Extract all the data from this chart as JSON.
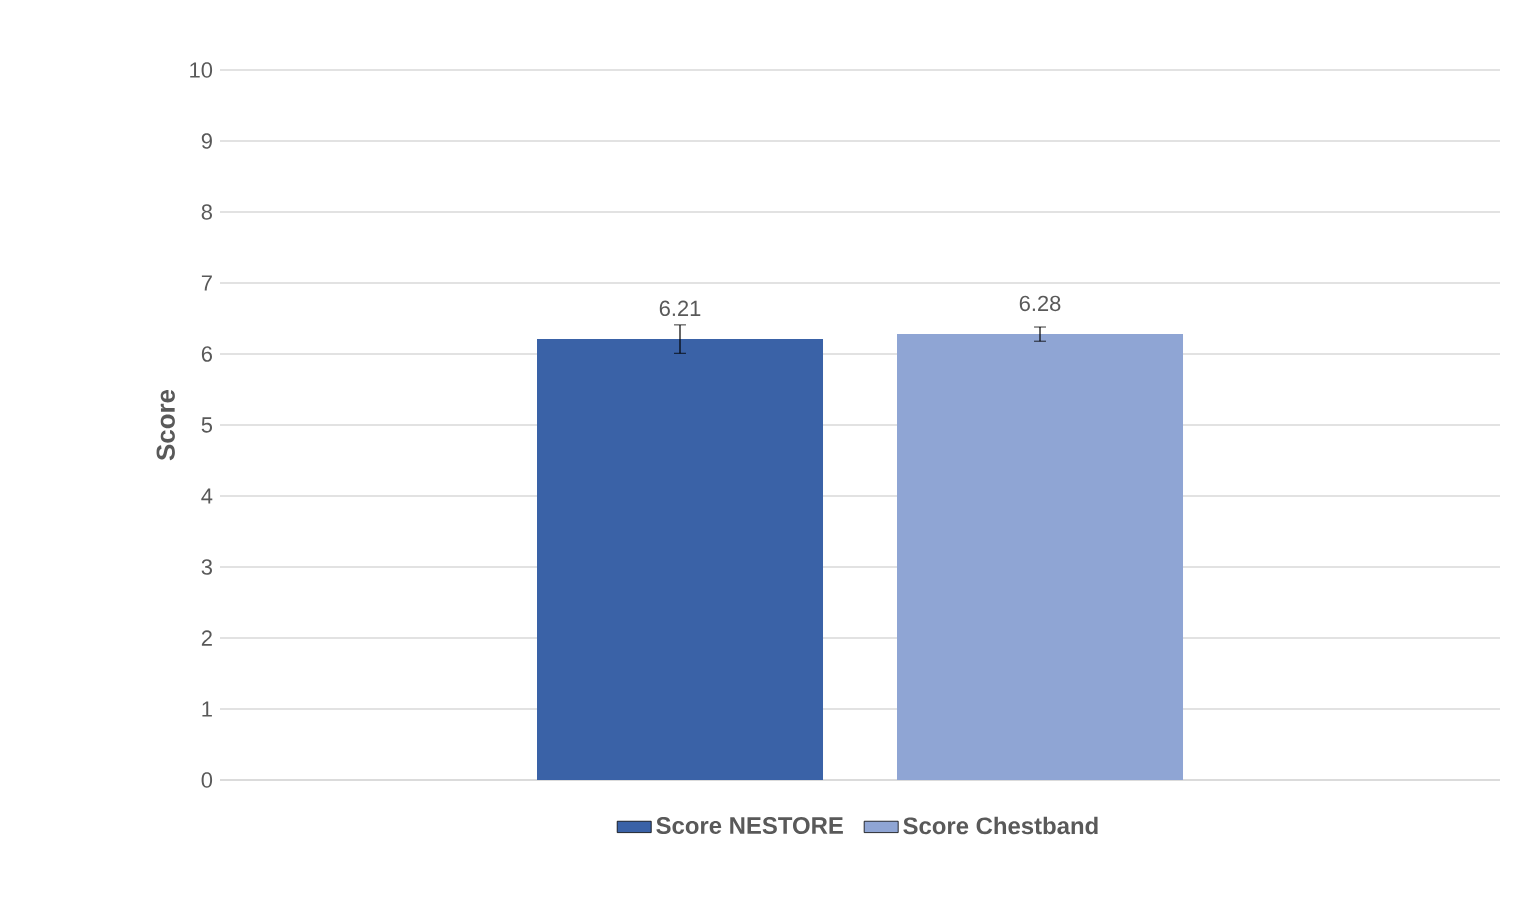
{
  "chart_data": {
    "type": "bar",
    "ylabel": "Score",
    "categories": [
      null
    ],
    "series": [
      {
        "name": "Score NESTORE",
        "color": "#3a62a7",
        "values": [
          6.21
        ],
        "errors": [
          0.2
        ]
      },
      {
        "name": "Score Chestband",
        "color": "#8fa5d4",
        "values": [
          6.28
        ],
        "errors": [
          0.1
        ]
      }
    ],
    "ylim": [
      0,
      10
    ],
    "yticks": [
      0,
      1,
      2,
      3,
      4,
      5,
      6,
      7,
      8,
      9,
      10
    ],
    "grid": "y",
    "legend": "bottom",
    "data_labels": true
  }
}
